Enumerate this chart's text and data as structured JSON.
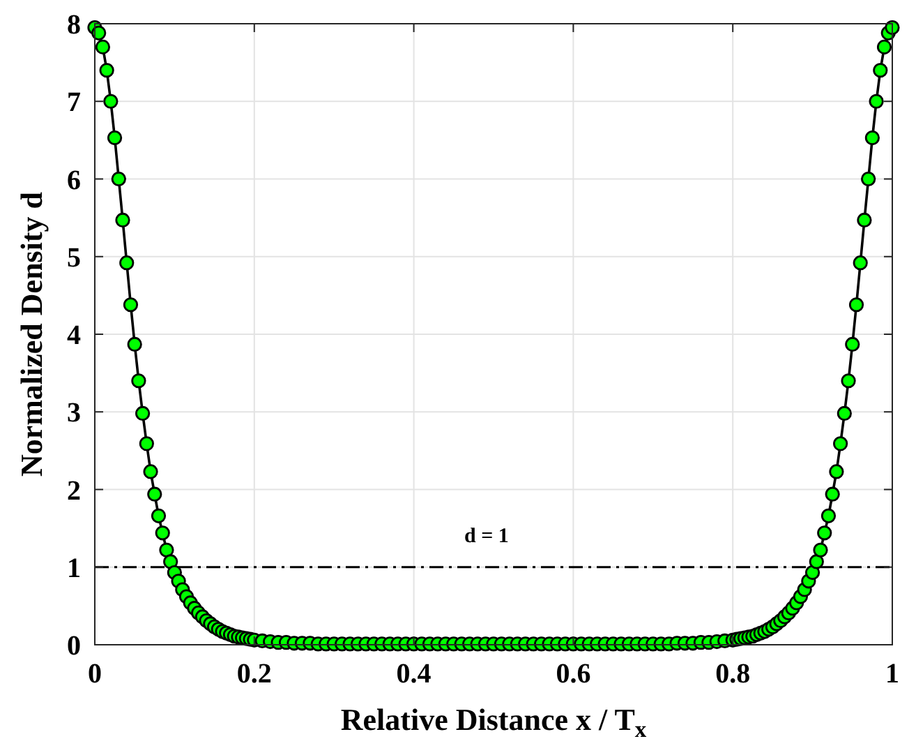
{
  "chart_data": {
    "type": "line",
    "xlabel": "Relative Distance x / T$_{x}$",
    "ylabel": "Normalized Density d",
    "xlim": [
      0,
      1
    ],
    "xticks": [
      0,
      0.2,
      0.4,
      0.6,
      0.8,
      1
    ],
    "ylim": [
      0,
      8
    ],
    "yticks": [
      0,
      1,
      2,
      3,
      4,
      5,
      6,
      7,
      8
    ],
    "grid": true,
    "marker": "circle",
    "line_style": "solid",
    "ref_lines": [
      {
        "axis": "y",
        "value": 1,
        "label": "d = 1",
        "line_style": "dashdot",
        "color": "#000000"
      }
    ],
    "x": [
      0,
      0.005,
      0.01,
      0.015,
      0.02,
      0.025,
      0.03,
      0.035,
      0.04,
      0.045,
      0.05,
      0.055,
      0.06,
      0.065,
      0.07,
      0.075,
      0.08,
      0.085,
      0.09,
      0.095,
      0.1,
      0.105,
      0.11,
      0.115,
      0.12,
      0.125,
      0.13,
      0.135,
      0.14,
      0.145,
      0.15,
      0.155,
      0.16,
      0.165,
      0.17,
      0.175,
      0.18,
      0.185,
      0.19,
      0.195,
      0.2,
      0.21,
      0.22,
      0.23,
      0.24,
      0.25,
      0.26,
      0.27,
      0.28,
      0.29,
      0.3,
      0.31,
      0.32,
      0.33,
      0.34,
      0.35,
      0.36,
      0.37,
      0.38,
      0.39,
      0.4,
      0.41,
      0.42,
      0.43,
      0.44,
      0.45,
      0.46,
      0.47,
      0.48,
      0.49,
      0.5,
      0.51,
      0.52,
      0.53,
      0.54,
      0.55,
      0.56,
      0.57,
      0.58,
      0.59,
      0.6,
      0.61,
      0.62,
      0.63,
      0.64,
      0.65,
      0.66,
      0.67,
      0.68,
      0.69,
      0.7,
      0.71,
      0.72,
      0.73,
      0.74,
      0.75,
      0.76,
      0.77,
      0.78,
      0.79,
      0.8,
      0.805,
      0.81,
      0.815,
      0.82,
      0.825,
      0.83,
      0.835,
      0.84,
      0.845,
      0.85,
      0.855,
      0.86,
      0.865,
      0.87,
      0.875,
      0.88,
      0.885,
      0.89,
      0.895,
      0.9,
      0.905,
      0.91,
      0.915,
      0.92,
      0.925,
      0.93,
      0.935,
      0.94,
      0.945,
      0.95,
      0.955,
      0.96,
      0.965,
      0.97,
      0.975,
      0.98,
      0.985,
      0.99,
      0.995,
      1
    ],
    "series": [
      {
        "color": "#00ff00",
        "values": [
          7.95,
          7.88,
          7.7,
          7.4,
          7.0,
          6.53,
          6.0,
          5.47,
          4.92,
          4.38,
          3.87,
          3.4,
          2.98,
          2.59,
          2.23,
          1.94,
          1.66,
          1.44,
          1.22,
          1.07,
          0.93,
          0.82,
          0.71,
          0.62,
          0.54,
          0.47,
          0.41,
          0.36,
          0.31,
          0.27,
          0.23,
          0.2,
          0.17,
          0.15,
          0.13,
          0.11,
          0.1,
          0.09,
          0.08,
          0.07,
          0.06,
          0.05,
          0.04,
          0.03,
          0.03,
          0.02,
          0.02,
          0.02,
          0.01,
          0.01,
          0.01,
          0.01,
          0.01,
          0.01,
          0.01,
          0.01,
          0.01,
          0.01,
          0.01,
          0.01,
          0.01,
          0.01,
          0.01,
          0.01,
          0.01,
          0.01,
          0.01,
          0.01,
          0.01,
          0.01,
          0.01,
          0.01,
          0.01,
          0.01,
          0.01,
          0.01,
          0.01,
          0.01,
          0.01,
          0.01,
          0.01,
          0.01,
          0.01,
          0.01,
          0.01,
          0.01,
          0.01,
          0.01,
          0.01,
          0.01,
          0.01,
          0.01,
          0.01,
          0.02,
          0.02,
          0.02,
          0.03,
          0.03,
          0.04,
          0.05,
          0.06,
          0.07,
          0.08,
          0.09,
          0.1,
          0.11,
          0.13,
          0.15,
          0.17,
          0.2,
          0.23,
          0.27,
          0.31,
          0.36,
          0.41,
          0.47,
          0.54,
          0.62,
          0.71,
          0.82,
          0.93,
          1.07,
          1.22,
          1.44,
          1.66,
          1.94,
          2.23,
          2.59,
          2.98,
          3.4,
          3.87,
          4.38,
          4.92,
          5.47,
          6.0,
          6.53,
          7.0,
          7.4,
          7.7,
          7.88,
          7.95
        ]
      }
    ]
  }
}
